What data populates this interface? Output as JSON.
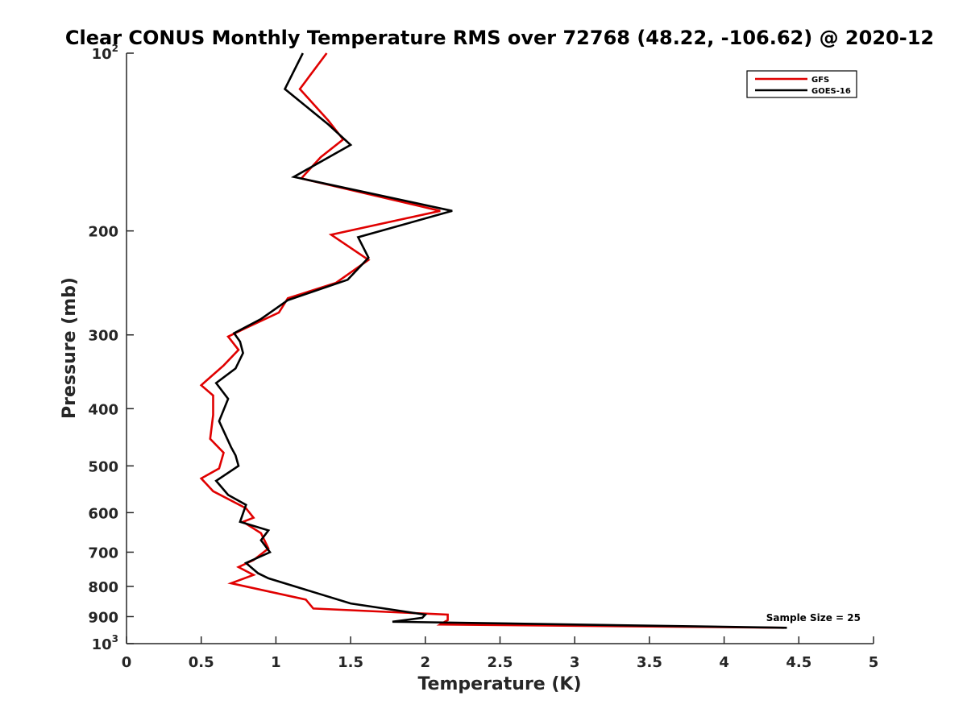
{
  "chart_data": {
    "type": "line",
    "title": "Clear CONUS Monthly Temperature RMS over 72768 (48.22, -106.62) @ 2020-12",
    "xlabel": "Temperature (K)",
    "ylabel": "Pressure (mb)",
    "xlim": [
      0,
      5
    ],
    "ylim": [
      100,
      1000
    ],
    "y_scale": "log",
    "y_reversed": true,
    "x_ticks": [
      0,
      0.5,
      1,
      1.5,
      2,
      2.5,
      3,
      3.5,
      4,
      4.5,
      5
    ],
    "x_tick_labels": [
      "0",
      "0.5",
      "1",
      "1.5",
      "2",
      "2.5",
      "3",
      "3.5",
      "4",
      "4.5",
      "5"
    ],
    "y_ticks": [
      100,
      200,
      300,
      400,
      500,
      600,
      700,
      800,
      900,
      1000
    ],
    "y_tick_labels": [
      {
        "base": "10",
        "sup": "2"
      },
      {
        "base": "200",
        "sup": ""
      },
      {
        "base": "300",
        "sup": ""
      },
      {
        "base": "400",
        "sup": ""
      },
      {
        "base": "500",
        "sup": ""
      },
      {
        "base": "600",
        "sup": ""
      },
      {
        "base": "700",
        "sup": ""
      },
      {
        "base": "800",
        "sup": ""
      },
      {
        "base": "900",
        "sup": ""
      },
      {
        "base": "10",
        "sup": "3"
      }
    ],
    "grid": false,
    "legend_position": "top-right",
    "annotation": "Sample Size = 25",
    "series": [
      {
        "name": "GFS",
        "color": "#e00000",
        "points": [
          [
            1.34,
            100
          ],
          [
            1.16,
            115
          ],
          [
            1.35,
            130
          ],
          [
            1.45,
            140
          ],
          [
            1.3,
            150
          ],
          [
            1.17,
            163
          ],
          [
            2.1,
            185
          ],
          [
            1.37,
            203
          ],
          [
            1.62,
            224
          ],
          [
            1.4,
            245
          ],
          [
            1.08,
            260
          ],
          [
            1.02,
            275
          ],
          [
            0.8,
            292
          ],
          [
            0.68,
            302
          ],
          [
            0.75,
            318
          ],
          [
            0.65,
            338
          ],
          [
            0.5,
            365
          ],
          [
            0.58,
            380
          ],
          [
            0.58,
            410
          ],
          [
            0.56,
            450
          ],
          [
            0.65,
            475
          ],
          [
            0.62,
            505
          ],
          [
            0.5,
            525
          ],
          [
            0.58,
            552
          ],
          [
            0.8,
            590
          ],
          [
            0.85,
            612
          ],
          [
            0.78,
            622
          ],
          [
            0.9,
            650
          ],
          [
            0.95,
            690
          ],
          [
            0.85,
            722
          ],
          [
            0.75,
            742
          ],
          [
            0.85,
            765
          ],
          [
            0.7,
            790
          ],
          [
            1.2,
            842
          ],
          [
            1.25,
            872
          ],
          [
            2.15,
            893
          ],
          [
            2.15,
            912
          ],
          [
            2.1,
            928
          ],
          [
            4.4,
            940
          ]
        ]
      },
      {
        "name": "GOES-16",
        "color": "#000000",
        "points": [
          [
            1.18,
            100
          ],
          [
            1.06,
            115
          ],
          [
            1.35,
            132
          ],
          [
            1.5,
            143
          ],
          [
            1.12,
            162
          ],
          [
            2.18,
            185
          ],
          [
            1.55,
            205
          ],
          [
            1.62,
            222
          ],
          [
            1.48,
            242
          ],
          [
            1.08,
            262
          ],
          [
            0.9,
            282
          ],
          [
            0.72,
            298
          ],
          [
            0.76,
            308
          ],
          [
            0.78,
            322
          ],
          [
            0.73,
            342
          ],
          [
            0.6,
            362
          ],
          [
            0.68,
            385
          ],
          [
            0.62,
            420
          ],
          [
            0.7,
            465
          ],
          [
            0.73,
            480
          ],
          [
            0.75,
            500
          ],
          [
            0.6,
            530
          ],
          [
            0.68,
            560
          ],
          [
            0.8,
            582
          ],
          [
            0.76,
            622
          ],
          [
            0.95,
            643
          ],
          [
            0.9,
            668
          ],
          [
            0.96,
            700
          ],
          [
            0.8,
            730
          ],
          [
            0.88,
            760
          ],
          [
            0.95,
            775
          ],
          [
            1.5,
            855
          ],
          [
            2.0,
            893
          ],
          [
            1.98,
            904
          ],
          [
            1.78,
            918
          ],
          [
            4.42,
            940
          ]
        ]
      }
    ]
  }
}
